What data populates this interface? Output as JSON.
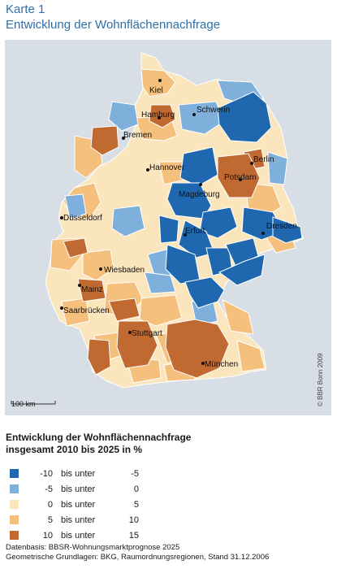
{
  "header": {
    "title": "Karte 1",
    "subtitle": "Entwicklung der Wohnflächennachfrage"
  },
  "map": {
    "cities": [
      {
        "name": "Kiel",
        "key": "kiel"
      },
      {
        "name": "Hamburg",
        "key": "hamburg"
      },
      {
        "name": "Schwerin",
        "key": "schwerin"
      },
      {
        "name": "Bremen",
        "key": "bremen"
      },
      {
        "name": "Berlin",
        "key": "berlin"
      },
      {
        "name": "Hannover",
        "key": "hannover"
      },
      {
        "name": "Potsdam",
        "key": "potsdam"
      },
      {
        "name": "Magdeburg",
        "key": "magdeburg"
      },
      {
        "name": "Düsseldorf",
        "key": "duesseldorf"
      },
      {
        "name": "Dresden",
        "key": "dresden"
      },
      {
        "name": "Erfurt",
        "key": "erfurt"
      },
      {
        "name": "Wiesbaden",
        "key": "wiesbaden"
      },
      {
        "name": "Mainz",
        "key": "mainz"
      },
      {
        "name": "Saarbrücken",
        "key": "saarbruecken"
      },
      {
        "name": "Stuttgart",
        "key": "stuttgart"
      },
      {
        "name": "München",
        "key": "muenchen"
      }
    ],
    "scale_label": "100 km",
    "copyright": "© BBR Bonn 2009",
    "colors": {
      "neg10": "#1f68b0",
      "neg5": "#7fb0dc",
      "zero": "#fbe5bc",
      "five": "#f5bf7c",
      "ten": "#c06a32",
      "water": "#d7dee6",
      "border": "#ffffff"
    }
  },
  "legend": {
    "title_line1": "Entwicklung der Wohnflächennachfrage",
    "title_line2": "insgesamt 2010 bis 2025 in %",
    "items": [
      {
        "from": "-10",
        "mid": "bis unter",
        "to": "-5",
        "color": "#1f68b0"
      },
      {
        "from": "-5",
        "mid": "bis unter",
        "to": "0",
        "color": "#7fb0dc"
      },
      {
        "from": "0",
        "mid": "bis unter",
        "to": "5",
        "color": "#fbe5bc"
      },
      {
        "from": "5",
        "mid": "bis unter",
        "to": "10",
        "color": "#f5bf7c"
      },
      {
        "from": "10",
        "mid": "bis unter",
        "to": "15",
        "color": "#c06a32"
      }
    ]
  },
  "source": {
    "line1": "Datenbasis: BBSR-Wohnungsmarktprognose 2025",
    "line2": "Geometrische Grundlagen: BKG, Raumordnungsregionen, Stand 31.12.2006"
  }
}
